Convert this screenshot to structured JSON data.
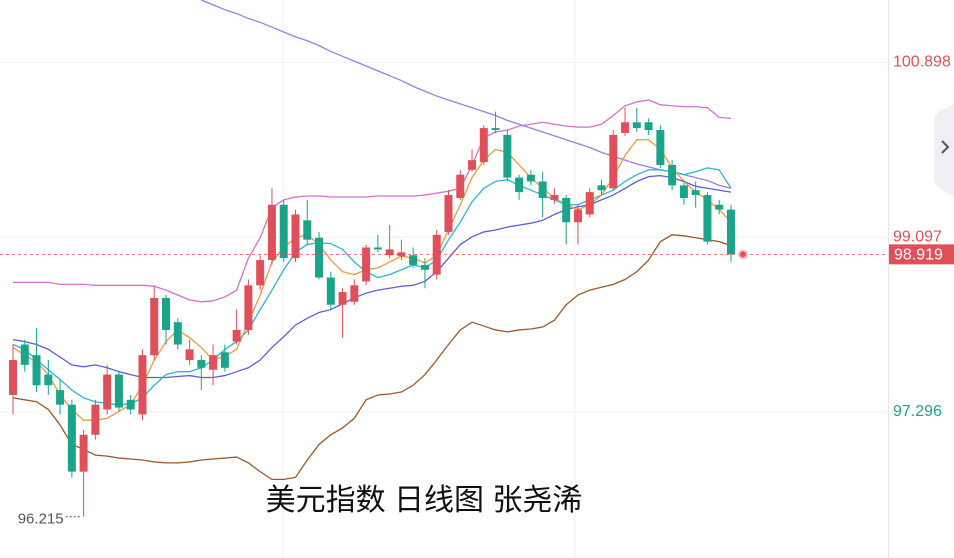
{
  "chart_data": {
    "type": "candlestick",
    "title": "美元指数 日线图 张尧浠",
    "ylim": [
      95.79,
      101.54
    ],
    "yticks": [
      97.296,
      99.097,
      100.898
    ],
    "grid": true,
    "up_color": "#e0505a",
    "down_color": "#1aa58a",
    "open": [
      97.47,
      97.99,
      97.88,
      97.68,
      97.52,
      97.37,
      96.68,
      97.06,
      97.32,
      97.68,
      97.42,
      97.27,
      97.88,
      98.47,
      98.22,
      97.83,
      97.83,
      97.73,
      97.91,
      98.02,
      98.14,
      98.6,
      98.86,
      99.43,
      98.88,
      99.27,
      99.09,
      98.68,
      98.4,
      98.43,
      98.64,
      98.99,
      98.91,
      98.9,
      98.91,
      98.81,
      98.71,
      99.15,
      99.5,
      99.79,
      99.87,
      100.22,
      100.15,
      99.71,
      99.74,
      99.67,
      99.48,
      99.5,
      99.25,
      99.33,
      99.63,
      99.6,
      100.17,
      100.28,
      100.28,
      100.2,
      99.84,
      99.63,
      99.58,
      99.53,
      99.43,
      99.38
    ],
    "high": [
      97.99,
      98.04,
      98.16,
      97.83,
      97.63,
      97.42,
      97.11,
      97.42,
      97.78,
      97.71,
      97.47,
      97.94,
      98.6,
      98.5,
      98.26,
      98.04,
      97.88,
      97.99,
      97.99,
      98.35,
      98.66,
      98.91,
      99.6,
      99.48,
      99.38,
      99.48,
      99.15,
      98.74,
      98.57,
      98.66,
      99.02,
      99.12,
      99.22,
      99.07,
      98.99,
      98.88,
      99.17,
      99.58,
      99.79,
      100.0,
      100.25,
      100.39,
      100.2,
      99.74,
      99.79,
      99.77,
      99.6,
      99.53,
      99.43,
      99.6,
      99.69,
      100.2,
      100.43,
      100.43,
      100.32,
      100.25,
      99.89,
      99.69,
      99.67,
      99.56,
      99.48,
      99.43
    ],
    "low": [
      97.27,
      97.71,
      97.5,
      97.47,
      97.27,
      96.62,
      96.215,
      97.01,
      97.27,
      97.3,
      97.27,
      97.21,
      97.83,
      97.99,
      97.94,
      97.78,
      97.52,
      97.57,
      97.71,
      97.99,
      98.09,
      98.55,
      98.81,
      98.84,
      98.84,
      99.02,
      98.66,
      98.35,
      98.06,
      98.4,
      98.6,
      98.94,
      98.88,
      98.86,
      98.78,
      98.57,
      98.66,
      99.12,
      99.48,
      99.77,
      99.84,
      100.17,
      99.67,
      99.48,
      99.63,
      99.3,
      99.44,
      99.02,
      99.02,
      99.3,
      99.53,
      99.58,
      100.14,
      100.18,
      100.15,
      99.81,
      99.58,
      99.43,
      99.4,
      99.02,
      99.33,
      98.84
    ],
    "close": [
      97.83,
      97.78,
      97.57,
      97.57,
      97.37,
      96.68,
      97.06,
      97.37,
      97.68,
      97.34,
      97.32,
      97.88,
      98.47,
      98.14,
      97.99,
      97.94,
      97.75,
      97.88,
      97.75,
      98.14,
      98.6,
      98.86,
      99.43,
      98.88,
      99.33,
      99.07,
      98.68,
      98.4,
      98.53,
      98.6,
      98.99,
      98.97,
      98.97,
      98.94,
      98.81,
      98.76,
      99.12,
      99.53,
      99.74,
      99.89,
      100.22,
      100.2,
      99.71,
      99.56,
      99.67,
      99.5,
      99.53,
      99.25,
      99.38,
      99.56,
      99.58,
      100.15,
      100.28,
      100.22,
      100.2,
      99.84,
      99.63,
      99.5,
      99.53,
      99.05,
      99.38,
      98.919
    ],
    "lines": [
      {
        "color": "#d86fd0",
        "values": [
          98.63,
          98.63,
          98.63,
          98.63,
          98.61,
          98.61,
          98.61,
          98.6,
          98.6,
          98.6,
          98.6,
          98.6,
          98.59,
          98.55,
          98.5,
          98.45,
          98.43,
          98.44,
          98.48,
          98.55,
          98.88,
          99.09,
          99.4,
          99.48,
          99.51,
          99.52,
          99.52,
          99.51,
          99.51,
          99.51,
          99.51,
          99.52,
          99.52,
          99.52,
          99.52,
          99.53,
          99.55,
          99.57,
          99.6,
          99.84,
          100.12,
          100.18,
          100.2,
          100.24,
          100.26,
          100.28,
          100.26,
          100.24,
          100.23,
          100.23,
          100.26,
          100.35,
          100.45,
          100.49,
          100.51,
          100.46,
          100.45,
          100.44,
          100.44,
          100.43,
          100.33,
          100.32
        ]
      },
      {
        "color": "#9b5a2e",
        "values": [
          97.44,
          97.42,
          97.4,
          97.32,
          97.16,
          96.96,
          96.91,
          96.85,
          96.84,
          96.82,
          96.81,
          96.8,
          96.78,
          96.77,
          96.77,
          96.78,
          96.8,
          96.81,
          96.82,
          96.83,
          96.77,
          96.68,
          96.6,
          96.6,
          96.62,
          96.8,
          96.96,
          97.06,
          97.13,
          97.23,
          97.42,
          97.47,
          97.48,
          97.5,
          97.57,
          97.68,
          97.83,
          97.99,
          98.14,
          98.22,
          98.18,
          98.14,
          98.12,
          98.14,
          98.15,
          98.17,
          98.24,
          98.4,
          98.5,
          98.55,
          98.58,
          98.61,
          98.66,
          98.74,
          98.86,
          99.05,
          99.12,
          99.11,
          99.09,
          99.07,
          99.05,
          99.01
        ]
      },
      {
        "color": "#a07be0",
        "values": [
          null,
          null,
          null,
          null,
          null,
          null,
          null,
          null,
          null,
          null,
          null,
          null,
          null,
          null,
          null,
          null,
          101.54,
          101.49,
          101.44,
          101.4,
          101.35,
          101.31,
          101.26,
          101.21,
          101.16,
          101.12,
          101.07,
          101.01,
          100.96,
          100.91,
          100.86,
          100.81,
          100.76,
          100.71,
          100.65,
          100.6,
          100.55,
          100.51,
          100.47,
          100.43,
          100.39,
          100.35,
          100.3,
          100.26,
          100.22,
          100.18,
          100.14,
          100.1,
          100.06,
          100.02,
          99.97,
          99.93,
          99.89,
          99.85,
          99.82,
          99.79,
          99.77,
          99.74,
          99.71,
          99.68,
          99.63,
          99.6
        ]
      },
      {
        "color": "#5a5fd8",
        "values": [
          98.04,
          98.02,
          97.99,
          97.94,
          97.86,
          97.78,
          97.76,
          97.78,
          97.75,
          97.71,
          97.68,
          97.65,
          97.65,
          97.65,
          97.66,
          97.67,
          97.65,
          97.65,
          97.67,
          97.71,
          97.75,
          97.83,
          97.96,
          98.07,
          98.19,
          98.26,
          98.32,
          98.35,
          98.41,
          98.47,
          98.52,
          98.55,
          98.57,
          98.59,
          98.6,
          98.64,
          98.74,
          98.88,
          99.02,
          99.1,
          99.15,
          99.17,
          99.2,
          99.22,
          99.24,
          99.27,
          99.33,
          99.38,
          99.41,
          99.43,
          99.48,
          99.53,
          99.6,
          99.67,
          99.72,
          99.73,
          99.71,
          99.67,
          99.62,
          99.6,
          99.58,
          99.56
        ]
      },
      {
        "color": "#28b8d0",
        "values": [
          97.99,
          97.94,
          97.83,
          97.73,
          97.63,
          97.52,
          97.44,
          97.4,
          97.38,
          97.37,
          97.38,
          97.44,
          97.57,
          97.68,
          97.71,
          97.71,
          97.75,
          97.83,
          97.94,
          98.02,
          98.14,
          98.35,
          98.55,
          98.76,
          98.94,
          99.02,
          99.04,
          99.03,
          98.97,
          98.84,
          98.74,
          98.68,
          98.71,
          98.76,
          98.81,
          98.78,
          98.86,
          99.07,
          99.25,
          99.46,
          99.6,
          99.67,
          99.69,
          99.63,
          99.58,
          99.53,
          99.48,
          99.43,
          99.43,
          99.48,
          99.53,
          99.58,
          99.67,
          99.74,
          99.79,
          99.79,
          99.77,
          99.74,
          99.77,
          99.81,
          99.79,
          99.6
        ]
      },
      {
        "color": "#f29a3a",
        "values": [
          97.96,
          97.88,
          97.81,
          97.68,
          97.47,
          97.32,
          97.21,
          97.21,
          97.23,
          97.3,
          97.37,
          97.57,
          97.83,
          98.02,
          98.14,
          98.06,
          97.96,
          97.83,
          97.87,
          97.94,
          98.22,
          98.5,
          98.84,
          98.99,
          99.09,
          99.12,
          99.02,
          98.86,
          98.74,
          98.71,
          98.76,
          98.78,
          98.84,
          98.9,
          98.88,
          98.83,
          98.91,
          99.17,
          99.43,
          99.71,
          99.89,
          100.0,
          99.97,
          99.84,
          99.71,
          99.6,
          99.5,
          99.43,
          99.38,
          99.43,
          99.53,
          99.71,
          99.94,
          100.1,
          100.1,
          100.0,
          99.81,
          99.67,
          99.56,
          99.48,
          99.38,
          99.25
        ]
      }
    ]
  }
}
